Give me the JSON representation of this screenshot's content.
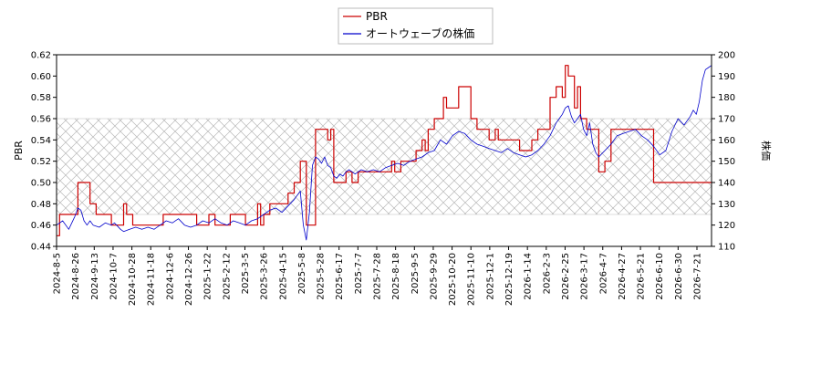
{
  "chart_data": {
    "type": "line",
    "title": "",
    "ylabel_left": "PBR",
    "ylabel_right": "株価",
    "ylim_left": [
      0.44,
      0.62
    ],
    "ylim_right": [
      110,
      200
    ],
    "yticks_left": [
      "0.44",
      "0.46",
      "0.48",
      "0.50",
      "0.52",
      "0.54",
      "0.56",
      "0.58",
      "0.60",
      "0.62"
    ],
    "yticks_right": [
      "110",
      "120",
      "130",
      "140",
      "150",
      "160",
      "170",
      "180",
      "190",
      "200"
    ],
    "xticks": [
      "2024-8-5",
      "2024-8-26",
      "2024-9-13",
      "2024-10-7",
      "2024-10-28",
      "2024-11-18",
      "2024-12-6",
      "2024-12-26",
      "2025-1-22",
      "2025-2-12",
      "2025-3-5",
      "2025-3-26",
      "2025-4-15",
      "2025-5-8",
      "2025-5-28",
      "2025-6-17",
      "2025-7-7",
      "2025-7-28",
      "2025-8-18",
      "2025-9-5",
      "2025-9-29",
      "2025-10-20",
      "2025-11-10",
      "2025-12-1",
      "2025-12-19",
      "2026-1-14",
      "2026-2-3",
      "2026-2-25",
      "2026-3-17",
      "2026-4-7",
      "2026-4-27",
      "2026-5-21",
      "2026-6-10",
      "2026-6-30",
      "2026-7-21"
    ],
    "band_left": [
      0.47,
      0.56
    ],
    "legend_position": "top-center",
    "grid": false,
    "series": [
      {
        "name": "PBR",
        "axis": "left",
        "color": "#cc0000",
        "points": [
          [
            0,
            0.45
          ],
          [
            1,
            0.45
          ],
          [
            1,
            0.47
          ],
          [
            7,
            0.47
          ],
          [
            7,
            0.5
          ],
          [
            11,
            0.5
          ],
          [
            11,
            0.48
          ],
          [
            13,
            0.48
          ],
          [
            13,
            0.47
          ],
          [
            18,
            0.47
          ],
          [
            18,
            0.46
          ],
          [
            22,
            0.46
          ],
          [
            22,
            0.48
          ],
          [
            23,
            0.48
          ],
          [
            23,
            0.47
          ],
          [
            25,
            0.47
          ],
          [
            25,
            0.46
          ],
          [
            35,
            0.46
          ],
          [
            35,
            0.47
          ],
          [
            46,
            0.47
          ],
          [
            46,
            0.46
          ],
          [
            50,
            0.46
          ],
          [
            50,
            0.47
          ],
          [
            52,
            0.47
          ],
          [
            52,
            0.46
          ],
          [
            57,
            0.46
          ],
          [
            57,
            0.47
          ],
          [
            62,
            0.47
          ],
          [
            62,
            0.46
          ],
          [
            66,
            0.46
          ],
          [
            66,
            0.48
          ],
          [
            67,
            0.48
          ],
          [
            67,
            0.46
          ],
          [
            68,
            0.46
          ],
          [
            68,
            0.47
          ],
          [
            70,
            0.47
          ],
          [
            70,
            0.48
          ],
          [
            76,
            0.48
          ],
          [
            76,
            0.49
          ],
          [
            78,
            0.49
          ],
          [
            78,
            0.5
          ],
          [
            80,
            0.5
          ],
          [
            80,
            0.52
          ],
          [
            82,
            0.52
          ],
          [
            82,
            0.46
          ],
          [
            85,
            0.46
          ],
          [
            85,
            0.55
          ],
          [
            89,
            0.55
          ],
          [
            89,
            0.54
          ],
          [
            90,
            0.54
          ],
          [
            90,
            0.55
          ],
          [
            91,
            0.55
          ],
          [
            91,
            0.5
          ],
          [
            95,
            0.5
          ],
          [
            95,
            0.51
          ],
          [
            97,
            0.51
          ],
          [
            97,
            0.5
          ],
          [
            99,
            0.5
          ],
          [
            99,
            0.51
          ],
          [
            103,
            0.51
          ],
          [
            103,
            0.51
          ],
          [
            110,
            0.51
          ],
          [
            110,
            0.52
          ],
          [
            111,
            0.52
          ],
          [
            111,
            0.51
          ],
          [
            113,
            0.51
          ],
          [
            113,
            0.52
          ],
          [
            118,
            0.52
          ],
          [
            118,
            0.53
          ],
          [
            120,
            0.53
          ],
          [
            120,
            0.54
          ],
          [
            121,
            0.54
          ],
          [
            121,
            0.53
          ],
          [
            122,
            0.53
          ],
          [
            122,
            0.55
          ],
          [
            124,
            0.55
          ],
          [
            124,
            0.56
          ],
          [
            127,
            0.56
          ],
          [
            127,
            0.58
          ],
          [
            128,
            0.58
          ],
          [
            128,
            0.57
          ],
          [
            132,
            0.57
          ],
          [
            132,
            0.59
          ],
          [
            136,
            0.59
          ],
          [
            136,
            0.56
          ],
          [
            138,
            0.56
          ],
          [
            138,
            0.55
          ],
          [
            142,
            0.55
          ],
          [
            142,
            0.54
          ],
          [
            144,
            0.54
          ],
          [
            144,
            0.55
          ],
          [
            145,
            0.55
          ],
          [
            145,
            0.54
          ],
          [
            152,
            0.54
          ],
          [
            152,
            0.53
          ],
          [
            156,
            0.53
          ],
          [
            156,
            0.54
          ],
          [
            158,
            0.54
          ],
          [
            158,
            0.55
          ],
          [
            162,
            0.55
          ],
          [
            162,
            0.58
          ],
          [
            164,
            0.58
          ],
          [
            164,
            0.59
          ],
          [
            166,
            0.59
          ],
          [
            166,
            0.58
          ],
          [
            167,
            0.58
          ],
          [
            167,
            0.61
          ],
          [
            168,
            0.61
          ],
          [
            168,
            0.6
          ],
          [
            170,
            0.6
          ],
          [
            170,
            0.57
          ],
          [
            171,
            0.57
          ],
          [
            171,
            0.59
          ],
          [
            172,
            0.59
          ],
          [
            172,
            0.56
          ],
          [
            174,
            0.56
          ],
          [
            174,
            0.55
          ],
          [
            175,
            0.55
          ],
          [
            175,
            0.55
          ],
          [
            178,
            0.55
          ],
          [
            178,
            0.51
          ],
          [
            180,
            0.51
          ],
          [
            180,
            0.52
          ],
          [
            182,
            0.52
          ],
          [
            182,
            0.55
          ],
          [
            196,
            0.55
          ],
          [
            196,
            0.5
          ],
          [
            215,
            0.5
          ]
        ]
      },
      {
        "name": "オートウェーブの株価",
        "axis": "right",
        "color": "#0000cc",
        "points": [
          [
            0,
            120
          ],
          [
            2,
            122
          ],
          [
            4,
            118
          ],
          [
            6,
            124
          ],
          [
            7,
            128
          ],
          [
            8,
            127
          ],
          [
            9,
            122
          ],
          [
            10,
            120
          ],
          [
            11,
            122
          ],
          [
            12,
            120
          ],
          [
            14,
            119
          ],
          [
            16,
            121
          ],
          [
            18,
            120
          ],
          [
            19,
            121
          ],
          [
            21,
            118
          ],
          [
            22,
            117
          ],
          [
            24,
            118
          ],
          [
            26,
            119
          ],
          [
            28,
            118
          ],
          [
            30,
            119
          ],
          [
            32,
            118
          ],
          [
            34,
            120
          ],
          [
            36,
            122
          ],
          [
            38,
            121
          ],
          [
            40,
            123
          ],
          [
            42,
            120
          ],
          [
            44,
            119
          ],
          [
            46,
            120
          ],
          [
            48,
            122
          ],
          [
            50,
            121
          ],
          [
            52,
            123
          ],
          [
            54,
            121
          ],
          [
            56,
            120
          ],
          [
            58,
            122
          ],
          [
            60,
            121
          ],
          [
            62,
            120
          ],
          [
            64,
            122
          ],
          [
            66,
            123
          ],
          [
            68,
            125
          ],
          [
            70,
            127
          ],
          [
            72,
            128
          ],
          [
            74,
            126
          ],
          [
            76,
            129
          ],
          [
            78,
            132
          ],
          [
            80,
            136
          ],
          [
            81,
            120
          ],
          [
            82,
            113
          ],
          [
            83,
            126
          ],
          [
            84,
            148
          ],
          [
            85,
            152
          ],
          [
            86,
            151
          ],
          [
            87,
            149
          ],
          [
            88,
            152
          ],
          [
            89,
            148
          ],
          [
            90,
            147
          ],
          [
            91,
            143
          ],
          [
            92,
            142
          ],
          [
            93,
            144
          ],
          [
            94,
            143
          ],
          [
            95,
            145
          ],
          [
            96,
            146
          ],
          [
            98,
            144
          ],
          [
            100,
            146
          ],
          [
            102,
            145
          ],
          [
            104,
            146
          ],
          [
            106,
            145
          ],
          [
            108,
            147
          ],
          [
            110,
            148
          ],
          [
            112,
            149
          ],
          [
            114,
            148
          ],
          [
            116,
            150
          ],
          [
            118,
            151
          ],
          [
            120,
            152
          ],
          [
            122,
            154
          ],
          [
            124,
            155
          ],
          [
            126,
            160
          ],
          [
            128,
            158
          ],
          [
            130,
            162
          ],
          [
            132,
            164
          ],
          [
            134,
            163
          ],
          [
            136,
            160
          ],
          [
            138,
            158
          ],
          [
            140,
            157
          ],
          [
            142,
            156
          ],
          [
            144,
            155
          ],
          [
            146,
            154
          ],
          [
            148,
            156
          ],
          [
            150,
            154
          ],
          [
            152,
            153
          ],
          [
            154,
            152
          ],
          [
            156,
            153
          ],
          [
            158,
            155
          ],
          [
            160,
            158
          ],
          [
            162,
            162
          ],
          [
            164,
            168
          ],
          [
            166,
            172
          ],
          [
            167,
            175
          ],
          [
            168,
            176
          ],
          [
            169,
            171
          ],
          [
            170,
            168
          ],
          [
            171,
            170
          ],
          [
            172,
            172
          ],
          [
            173,
            165
          ],
          [
            174,
            162
          ],
          [
            175,
            168
          ],
          [
            176,
            158
          ],
          [
            177,
            154
          ],
          [
            178,
            152
          ],
          [
            180,
            155
          ],
          [
            182,
            158
          ],
          [
            184,
            162
          ],
          [
            186,
            163
          ],
          [
            188,
            164
          ],
          [
            190,
            165
          ],
          [
            192,
            162
          ],
          [
            194,
            160
          ],
          [
            196,
            157
          ],
          [
            198,
            153
          ],
          [
            200,
            155
          ],
          [
            202,
            164
          ],
          [
            204,
            170
          ],
          [
            206,
            167
          ],
          [
            208,
            171
          ],
          [
            209,
            174
          ],
          [
            210,
            172
          ],
          [
            211,
            178
          ],
          [
            212,
            188
          ],
          [
            213,
            193
          ],
          [
            214,
            194
          ],
          [
            215,
            195
          ]
        ]
      }
    ]
  }
}
